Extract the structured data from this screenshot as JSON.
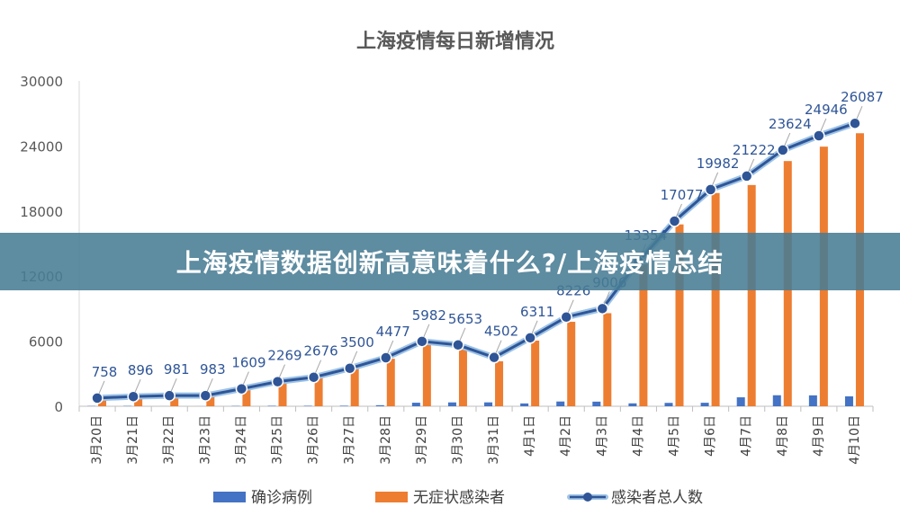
{
  "banner": {
    "text": "上海疫情数据创新高意味着什么?/上海疫情总结"
  },
  "colors": {
    "confirmed": "#4472C4",
    "asymptomatic": "#ED7D31",
    "total": "#2F5597",
    "total_line_light": "#9DC3E6",
    "label": "#2F5597"
  },
  "chart_data": {
    "type": "bar",
    "title": "上海疫情每日新增情况",
    "xlabel": "",
    "ylabel": "",
    "ylim": [
      0,
      30000
    ],
    "yticks": [
      0,
      6000,
      12000,
      18000,
      24000,
      30000
    ],
    "grid": false,
    "legend_position": "bottom",
    "categories": [
      "3月20日",
      "3月21日",
      "3月22日",
      "3月23日",
      "3月24日",
      "3月25日",
      "3月26日",
      "3月27日",
      "3月28日",
      "3月29日",
      "3月30日",
      "3月31日",
      "4月1日",
      "4月2日",
      "4月3日",
      "4月4日",
      "4月5日",
      "4月6日",
      "4月7日",
      "4月8日",
      "4月9日",
      "4月10日"
    ],
    "series": [
      {
        "name": "确诊病例",
        "type": "bar",
        "values": [
          24,
          31,
          4,
          4,
          29,
          45,
          45,
          50,
          96,
          326,
          355,
          358,
          260,
          438,
          425,
          268,
          311,
          322,
          824,
          1015,
          1006,
          914
        ]
      },
      {
        "name": "无症状感染者",
        "type": "bar",
        "values": [
          734,
          865,
          977,
          979,
          1580,
          2224,
          2631,
          3450,
          4381,
          5656,
          5298,
          4144,
          6051,
          7788,
          8581,
          13086,
          16766,
          19660,
          20398,
          22609,
          23937,
          25173
        ]
      },
      {
        "name": "感染者总人数",
        "type": "line",
        "values": [
          758,
          896,
          981,
          983,
          1609,
          2269,
          2676,
          3500,
          4477,
          5982,
          5653,
          4502,
          6311,
          8226,
          9006,
          13354,
          17077,
          19982,
          21222,
          23624,
          24946,
          26087
        ]
      }
    ],
    "data_labels": [
      "758",
      "896",
      "981",
      "983",
      "1609",
      "2269",
      "2676",
      "3500",
      "4477",
      "5982",
      "5653",
      "4502",
      "6311",
      "8226",
      "9006",
      "13354",
      "17077",
      "19982",
      "21222",
      "23624",
      "24946",
      "26087"
    ]
  }
}
